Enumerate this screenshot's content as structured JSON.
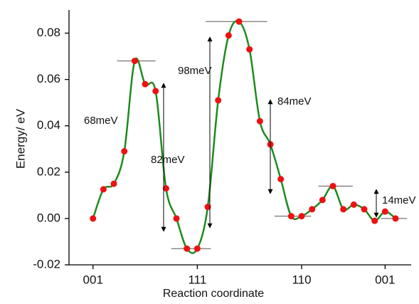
{
  "chart_data": {
    "type": "line",
    "y_label": "Energy/ eV",
    "x_label": "Reaction coordinate",
    "x": [
      0,
      1,
      2,
      3,
      4,
      5,
      6,
      7,
      8,
      9,
      10,
      11,
      12,
      13,
      14,
      15,
      16,
      17,
      18,
      19,
      20,
      21,
      22,
      23,
      24,
      25,
      26,
      27,
      28,
      29
    ],
    "series": [
      {
        "name": "energy",
        "color": "#1f8a1f",
        "marker_color": "#ee1111",
        "values": [
          0.0,
          0.0126,
          0.015,
          0.029,
          0.068,
          0.058,
          0.055,
          0.013,
          0.0,
          -0.013,
          -0.013,
          0.005,
          0.051,
          0.079,
          0.085,
          0.073,
          0.042,
          0.032,
          0.017,
          0.001,
          0.001,
          0.004,
          0.008,
          0.014,
          0.004,
          0.006,
          0.004,
          -0.001,
          0.003,
          0.0
        ]
      }
    ],
    "xlim": [
      -2.3,
      30.5
    ],
    "ylim": [
      -0.02,
      0.09
    ],
    "xticks": [
      {
        "value": 0,
        "label": "001"
      },
      {
        "value": 10,
        "label": "111"
      },
      {
        "value": 20,
        "label": "110"
      },
      {
        "value": 28,
        "label": "001"
      }
    ],
    "yticks": [
      {
        "value": -0.02,
        "label": "-0.02"
      },
      {
        "value": 0,
        "label": "0.00"
      },
      {
        "value": 0.02,
        "label": "0.02"
      },
      {
        "value": 0.04,
        "label": "0.04"
      },
      {
        "value": 0.06,
        "label": "0.06"
      },
      {
        "value": 0.08,
        "label": "0.08"
      }
    ],
    "annotations": [
      {
        "text": "68meV"
      },
      {
        "text": "82meV"
      },
      {
        "text": "98meV"
      },
      {
        "text": "84meV"
      },
      {
        "text": "14meV"
      }
    ]
  }
}
